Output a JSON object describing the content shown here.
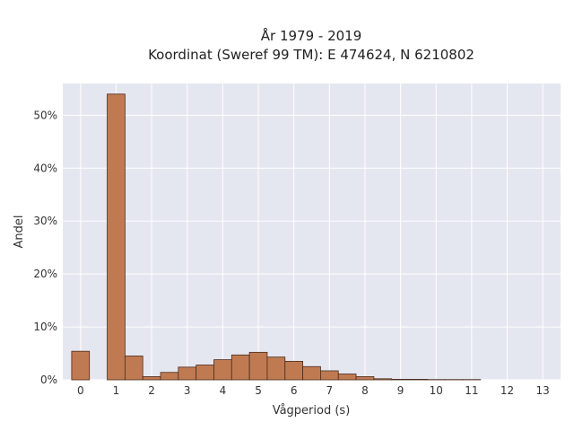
{
  "chart_data": {
    "type": "bar",
    "title_line1": "År 1979 - 2019",
    "title_line2": "Koordinat (Sweref 99 TM): E 474624, N 6210802",
    "xlabel": "Vågperiod (s)",
    "ylabel": "Andel",
    "x_ticks": [
      "0",
      "1",
      "2",
      "3",
      "4",
      "5",
      "6",
      "7",
      "8",
      "9",
      "10",
      "11",
      "12",
      "13"
    ],
    "y_ticks": [
      "0%",
      "10%",
      "20%",
      "30%",
      "40%",
      "50%"
    ],
    "xlim": [
      -0.5,
      13.5
    ],
    "ylim": [
      0,
      56
    ],
    "bin_width": 0.5,
    "bins": [
      {
        "x": 0.0,
        "value": 5.4
      },
      {
        "x": 1.0,
        "value": 54.0
      },
      {
        "x": 1.5,
        "value": 4.5
      },
      {
        "x": 2.0,
        "value": 0.6
      },
      {
        "x": 2.5,
        "value": 1.4
      },
      {
        "x": 3.0,
        "value": 2.4
      },
      {
        "x": 3.5,
        "value": 2.8
      },
      {
        "x": 4.0,
        "value": 3.8
      },
      {
        "x": 4.5,
        "value": 4.7
      },
      {
        "x": 5.0,
        "value": 5.2
      },
      {
        "x": 5.5,
        "value": 4.3
      },
      {
        "x": 6.0,
        "value": 3.5
      },
      {
        "x": 6.5,
        "value": 2.5
      },
      {
        "x": 7.0,
        "value": 1.7
      },
      {
        "x": 7.5,
        "value": 1.1
      },
      {
        "x": 8.0,
        "value": 0.6
      },
      {
        "x": 8.5,
        "value": 0.2
      },
      {
        "x": 9.0,
        "value": 0.1
      },
      {
        "x": 9.5,
        "value": 0.1
      },
      {
        "x": 10.0,
        "value": 0.05
      },
      {
        "x": 10.5,
        "value": 0.05
      },
      {
        "x": 11.0,
        "value": 0.05
      }
    ],
    "grid": true,
    "colors": {
      "bar_fill": "#c07a52",
      "bar_stroke": "#4a2a1a",
      "plot_background": "#e5e7f0",
      "grid": "#ffffff"
    }
  }
}
